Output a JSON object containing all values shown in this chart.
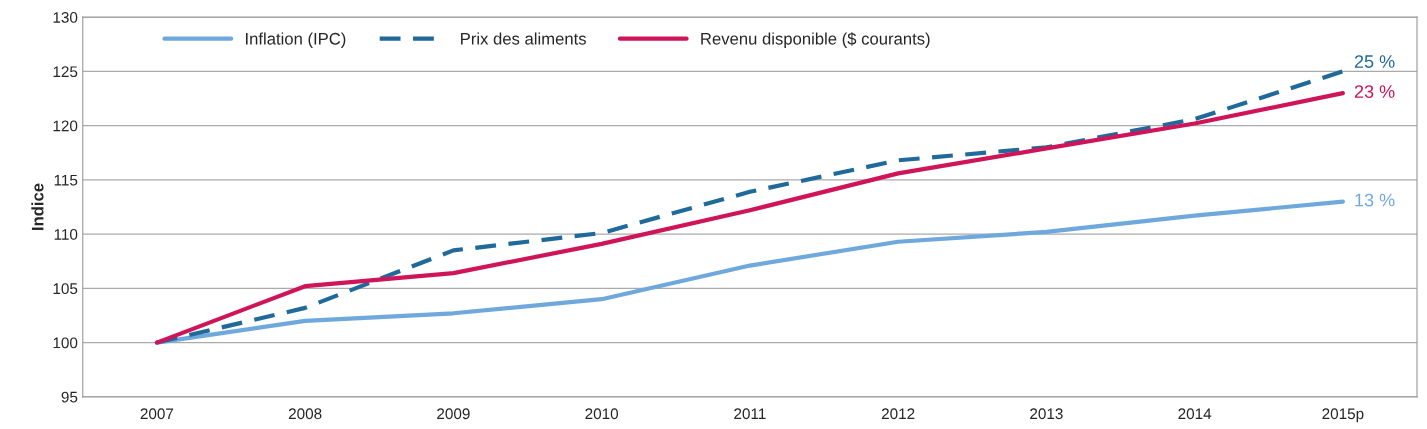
{
  "chart_data": {
    "type": "line",
    "ylabel": "Indice",
    "categories": [
      "2007",
      "2008",
      "2009",
      "2010",
      "2011",
      "2012",
      "2013",
      "2014",
      "2015p"
    ],
    "series": [
      {
        "name": "Inflation (IPC)",
        "color": "#6fa8dc",
        "line_style": "solid",
        "values": [
          100,
          102.0,
          102.7,
          104.0,
          107.1,
          109.3,
          110.2,
          111.7,
          113
        ]
      },
      {
        "name": "Prix des aliments",
        "color": "#1f6a9a",
        "line_style": "dashed",
        "values": [
          100,
          103.2,
          108.5,
          110.1,
          113.9,
          116.8,
          118.0,
          120.6,
          125
        ]
      },
      {
        "name": "Revenu disponible ($ courants)",
        "color": "#d0145a",
        "line_style": "solid",
        "values": [
          100,
          105.2,
          106.4,
          109.1,
          112.2,
          115.6,
          117.9,
          120.2,
          123
        ]
      }
    ],
    "annotations": [
      {
        "text": "13 %",
        "x": "2015p",
        "y": 113
      },
      {
        "text": "25 %",
        "x": "2015p",
        "y": 125
      },
      {
        "text": "23 %",
        "x": "2015p",
        "y": 123
      }
    ],
    "ylim": [
      95,
      130
    ],
    "yticks": [
      95,
      100,
      105,
      110,
      115,
      120,
      125,
      130
    ],
    "grid": "y",
    "legend": "top left",
    "marker": "none"
  }
}
